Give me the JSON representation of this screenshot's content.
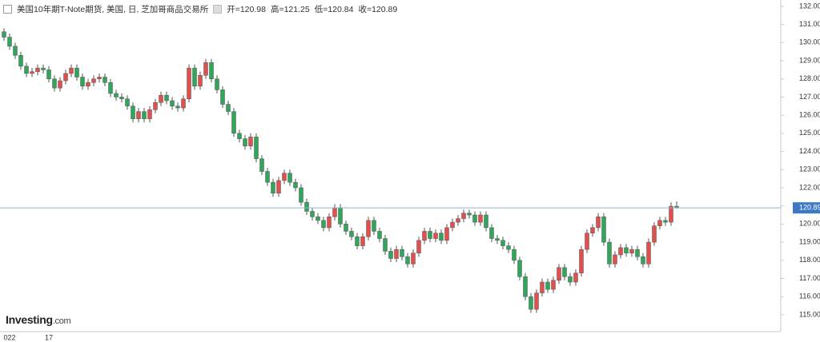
{
  "header": {
    "title": "美国10年期T-Note期货, 美国, 日, 芝加哥商品交易所",
    "ohlc": [
      "开=120.98",
      "高=121.25",
      "低=120.84",
      "收=120.89"
    ]
  },
  "logo": {
    "brand": "Investing",
    "suffix": ".com"
  },
  "chart_data": {
    "type": "candlestick",
    "up_color": "#e0504c",
    "down_color": "#2fa65a",
    "ylim": [
      114.07,
      132.35
    ],
    "yticks": [
      {
        "value": 115,
        "label": "115.00"
      },
      {
        "value": 116,
        "label": "116.00"
      },
      {
        "value": 117,
        "label": "117.00"
      },
      {
        "value": 118,
        "label": "118.00"
      },
      {
        "value": 119,
        "label": "119.00"
      },
      {
        "value": 120,
        "label": "120.00"
      },
      {
        "value": 121,
        "label": "121.00"
      },
      {
        "value": 122,
        "label": "122.00"
      },
      {
        "value": 123,
        "label": "123.00"
      },
      {
        "value": 124,
        "label": "124.00"
      },
      {
        "value": 125,
        "label": "125.00"
      },
      {
        "value": 126,
        "label": "126.00"
      },
      {
        "value": 127,
        "label": "127.00"
      },
      {
        "value": 128,
        "label": "128.00"
      },
      {
        "value": 129,
        "label": "129.00"
      },
      {
        "value": 130,
        "label": "130.00"
      },
      {
        "value": 131,
        "label": "131.00"
      },
      {
        "value": 132,
        "label": "132.00"
      }
    ],
    "last_price": {
      "value": 120.89,
      "label": "120.89"
    },
    "categories": [
      null,
      "022",
      null,
      null,
      null,
      null,
      null,
      null,
      "17",
      null,
      null,
      null,
      null,
      null,
      null,
      null,
      null,
      null,
      null,
      null,
      null,
      null,
      null,
      null,
      null,
      null,
      null,
      null,
      null,
      null,
      null,
      null,
      null,
      null,
      null,
      null,
      null,
      null,
      null,
      null,
      null,
      null,
      null,
      null,
      null,
      null,
      null,
      null,
      null,
      null,
      null,
      null,
      null,
      null,
      null,
      null,
      null,
      null,
      null,
      null,
      null,
      null,
      null,
      null,
      null,
      null,
      null,
      null,
      null,
      null,
      null,
      null,
      null,
      null,
      null,
      null,
      null,
      null,
      null,
      null,
      null,
      null,
      null,
      null,
      null,
      null,
      null,
      null,
      null,
      null,
      null,
      null,
      null,
      null,
      null,
      null,
      null,
      null,
      null,
      null,
      null,
      null,
      null,
      null,
      null,
      null,
      null,
      null,
      null,
      null,
      null,
      null,
      null,
      null,
      null,
      null,
      null,
      null,
      null,
      null,
      null
    ],
    "open": [
      130.6,
      130.3,
      129.8,
      129.3,
      128.7,
      128.3,
      128.4,
      128.6,
      128.5,
      128.0,
      127.5,
      127.9,
      128.3,
      128.6,
      128.1,
      127.6,
      127.8,
      128.0,
      128.1,
      127.8,
      127.2,
      127.0,
      126.9,
      126.5,
      125.8,
      126.2,
      125.8,
      126.3,
      126.7,
      127.1,
      126.8,
      126.5,
      126.4,
      126.9,
      128.6,
      127.6,
      128.2,
      128.9,
      128.0,
      127.4,
      126.6,
      126.2,
      125.0,
      124.7,
      124.3,
      124.8,
      123.6,
      122.9,
      122.3,
      121.7,
      122.4,
      122.8,
      122.3,
      122.0,
      121.2,
      120.7,
      120.4,
      120.2,
      119.8,
      120.4,
      120.9,
      120.0,
      119.6,
      119.3,
      118.8,
      119.3,
      120.2,
      119.6,
      119.2,
      118.5,
      118.1,
      118.6,
      118.2,
      117.8,
      118.4,
      119.1,
      119.6,
      119.2,
      119.5,
      119.1,
      119.8,
      120.1,
      120.3,
      120.6,
      120.5,
      120.1,
      120.5,
      119.8,
      119.2,
      119.1,
      118.8,
      118.6,
      118.0,
      117.1,
      116.0,
      115.3,
      116.2,
      116.8,
      116.4,
      116.9,
      117.6,
      117.1,
      116.8,
      117.3,
      118.6,
      119.5,
      119.8,
      120.4,
      119.0,
      117.8,
      118.3,
      118.7,
      118.4,
      118.6,
      118.2,
      117.8,
      119.0,
      119.9,
      120.2,
      120.1,
      120.98
    ],
    "high": [
      130.8,
      130.5,
      130.0,
      129.5,
      128.9,
      128.6,
      128.8,
      128.8,
      128.7,
      128.2,
      128.1,
      128.5,
      128.8,
      128.8,
      128.3,
      128.0,
      128.2,
      128.3,
      128.3,
      128.0,
      127.4,
      127.2,
      127.1,
      126.7,
      126.4,
      126.4,
      126.5,
      126.9,
      127.3,
      127.3,
      127.0,
      126.7,
      127.1,
      128.8,
      128.8,
      128.4,
      129.1,
      129.1,
      128.2,
      127.6,
      126.8,
      126.4,
      125.2,
      124.9,
      125.0,
      125.0,
      123.8,
      123.1,
      122.5,
      122.6,
      123.0,
      123.0,
      122.5,
      122.2,
      121.4,
      120.9,
      120.6,
      120.4,
      120.6,
      121.1,
      121.1,
      120.2,
      119.8,
      119.5,
      119.5,
      120.4,
      120.4,
      119.8,
      119.4,
      118.7,
      118.8,
      118.8,
      118.4,
      118.6,
      119.3,
      119.8,
      119.8,
      119.7,
      119.7,
      120.0,
      120.3,
      120.5,
      120.8,
      120.8,
      120.7,
      120.7,
      120.7,
      120.0,
      119.4,
      119.3,
      119.0,
      118.8,
      118.2,
      117.3,
      116.2,
      116.4,
      117.0,
      117.0,
      117.1,
      117.8,
      117.8,
      117.3,
      117.5,
      118.8,
      119.7,
      120.0,
      120.6,
      120.6,
      119.2,
      118.5,
      118.9,
      118.9,
      118.8,
      118.8,
      118.4,
      119.2,
      120.1,
      120.4,
      120.4,
      121.2,
      121.25
    ],
    "low": [
      130.1,
      129.6,
      129.1,
      128.5,
      128.1,
      128.1,
      128.2,
      128.3,
      127.8,
      127.3,
      127.3,
      127.7,
      128.1,
      127.9,
      127.4,
      127.4,
      127.6,
      127.8,
      127.6,
      127.0,
      126.8,
      126.7,
      126.3,
      125.6,
      125.6,
      125.6,
      125.6,
      126.1,
      126.5,
      126.6,
      126.3,
      126.2,
      126.2,
      126.7,
      127.4,
      127.4,
      128.0,
      127.8,
      127.2,
      126.4,
      126.0,
      124.8,
      124.5,
      124.1,
      124.1,
      123.4,
      122.7,
      122.1,
      121.5,
      121.5,
      122.2,
      122.1,
      121.8,
      121.0,
      120.5,
      120.2,
      120.0,
      119.6,
      119.6,
      120.2,
      119.8,
      119.4,
      119.1,
      118.6,
      118.6,
      119.1,
      119.4,
      119.0,
      118.3,
      117.9,
      117.9,
      118.0,
      117.6,
      117.6,
      118.2,
      118.9,
      119.0,
      119.0,
      118.9,
      118.9,
      119.6,
      119.9,
      120.1,
      120.3,
      119.9,
      119.9,
      119.6,
      119.0,
      118.9,
      118.6,
      118.4,
      117.8,
      116.9,
      115.8,
      115.1,
      115.1,
      116.0,
      116.2,
      116.2,
      116.7,
      116.9,
      116.6,
      116.6,
      117.1,
      118.4,
      119.3,
      119.6,
      118.8,
      117.6,
      117.6,
      118.1,
      118.2,
      118.2,
      118.0,
      117.6,
      117.6,
      118.8,
      119.7,
      119.9,
      119.9,
      120.84
    ],
    "close": [
      130.3,
      129.8,
      129.3,
      128.7,
      128.3,
      128.4,
      128.6,
      128.5,
      128.0,
      127.5,
      127.9,
      128.3,
      128.6,
      128.1,
      127.6,
      127.8,
      128.0,
      128.1,
      127.8,
      127.2,
      127.0,
      126.9,
      126.5,
      125.8,
      126.2,
      125.8,
      126.3,
      126.7,
      127.1,
      126.8,
      126.5,
      126.4,
      126.9,
      128.6,
      127.6,
      128.2,
      128.9,
      128.0,
      127.4,
      126.6,
      126.2,
      125.0,
      124.7,
      124.3,
      124.8,
      123.6,
      122.9,
      122.3,
      121.7,
      122.4,
      122.8,
      122.3,
      122.0,
      121.2,
      120.7,
      120.4,
      120.2,
      119.8,
      120.4,
      120.9,
      120.0,
      119.6,
      119.3,
      118.8,
      119.3,
      120.2,
      119.6,
      119.2,
      118.5,
      118.1,
      118.6,
      118.2,
      117.8,
      118.4,
      119.1,
      119.6,
      119.2,
      119.5,
      119.1,
      119.8,
      120.1,
      120.3,
      120.6,
      120.5,
      120.1,
      120.5,
      119.8,
      119.2,
      119.1,
      118.8,
      118.6,
      118.0,
      117.1,
      116.0,
      115.3,
      116.2,
      116.8,
      116.4,
      116.9,
      117.6,
      117.1,
      116.8,
      117.3,
      118.6,
      119.5,
      119.8,
      120.4,
      119.0,
      117.8,
      118.3,
      118.7,
      118.4,
      118.6,
      118.2,
      117.8,
      119.0,
      119.9,
      120.2,
      120.1,
      120.98,
      120.89
    ]
  }
}
